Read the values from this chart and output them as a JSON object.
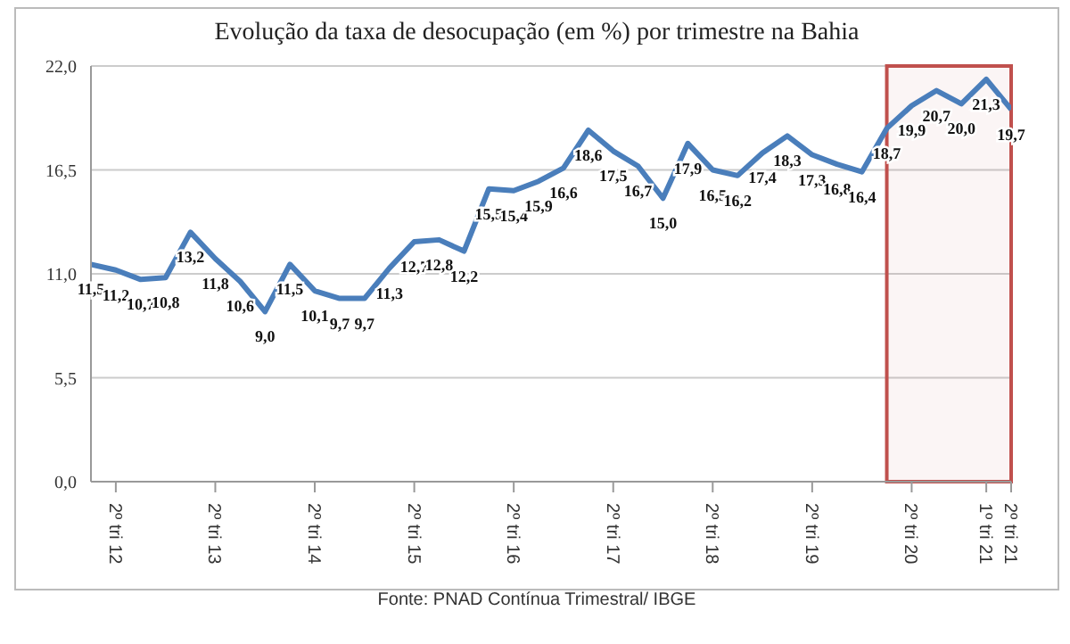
{
  "chart_data": {
    "type": "line",
    "title": "Evolução da taxa de desocupação (em %) por trimestre na Bahia",
    "annotations": [
      "Fonte: PNAD Contínua Trimestral/ IBGE"
    ],
    "x": [
      "2012-01",
      "2012-04",
      "2012-07",
      "2012-10",
      "2013-01",
      "2013-04",
      "2013-07",
      "2013-10",
      "2014-01",
      "2014-04",
      "2014-07",
      "2014-10",
      "2015-01",
      "2015-04",
      "2015-07",
      "2015-10",
      "2016-01",
      "2016-04",
      "2016-07",
      "2016-10",
      "2017-01",
      "2017-04",
      "2017-07",
      "2017-10",
      "2018-01",
      "2018-04",
      "2018-07",
      "2018-10",
      "2019-01",
      "2019-04",
      "2019-07",
      "2019-10",
      "2020-01",
      "2020-04",
      "2020-07",
      "2020-10",
      "2021-01",
      "2021-04"
    ],
    "series": [
      {
        "color": "#4a7ebb",
        "values": [
          11.5,
          11.2,
          10.7,
          10.8,
          13.2,
          11.8,
          10.6,
          9.0,
          11.5,
          10.1,
          9.7,
          9.7,
          11.3,
          12.7,
          12.8,
          12.2,
          15.5,
          15.4,
          15.9,
          16.6,
          18.6,
          17.5,
          16.7,
          15.0,
          17.9,
          16.5,
          16.2,
          17.4,
          18.3,
          17.3,
          16.8,
          16.4,
          18.7,
          19.9,
          20.7,
          20.0,
          21.3,
          19.7
        ],
        "value_labels": [
          "11,5",
          "11,2",
          "10,7",
          "10,8",
          "13,2",
          "11,8",
          "10,6",
          "9,0",
          "11,5",
          "10,1",
          "9,7",
          "9,7",
          "11,3",
          "12,7",
          "12,8",
          "12,2",
          "15,5",
          "15,4",
          "15,9",
          "16,6",
          "18,6",
          "17,5",
          "16,7",
          "15,0",
          "17,9",
          "16,5",
          "16,2",
          "17,4",
          "18,3",
          "17,3",
          "16,8",
          "16,4",
          "18,7",
          "19,9",
          "20,7",
          "20,0",
          "21,3",
          "19,7"
        ]
      }
    ],
    "xlim": [
      "2012-01",
      "2021-04"
    ],
    "xticks": [
      {
        "value": "2012-04",
        "label": "2º tri 12"
      },
      {
        "value": "2013-04",
        "label": "2º tri 13"
      },
      {
        "value": "2014-04",
        "label": "2º tri 14"
      },
      {
        "value": "2015-04",
        "label": "2º tri 15"
      },
      {
        "value": "2016-04",
        "label": "2º tri 16"
      },
      {
        "value": "2017-04",
        "label": "2º tri 17"
      },
      {
        "value": "2018-04",
        "label": "2º tri 18"
      },
      {
        "value": "2019-04",
        "label": "2º tri 19"
      },
      {
        "value": "2020-04",
        "label": "2º tri 20"
      },
      {
        "value": "2021-01",
        "label": "1º tri 21"
      },
      {
        "value": "2021-04",
        "label": "2º tri 21"
      }
    ],
    "ylim": [
      0,
      22
    ],
    "yticks": [
      {
        "value": 0,
        "label": "0,0"
      },
      {
        "value": 5.5,
        "label": "5,5"
      },
      {
        "value": 11,
        "label": "11,0"
      },
      {
        "value": 16.5,
        "label": "16,5"
      },
      {
        "value": 22,
        "label": "22,0"
      }
    ],
    "bands": [
      {
        "axis": "x",
        "from": "2020-01",
        "to": "2021-04",
        "color": "#c0504d"
      }
    ],
    "grid": "y",
    "legend": false,
    "marker": "none",
    "line_style": "solid"
  }
}
